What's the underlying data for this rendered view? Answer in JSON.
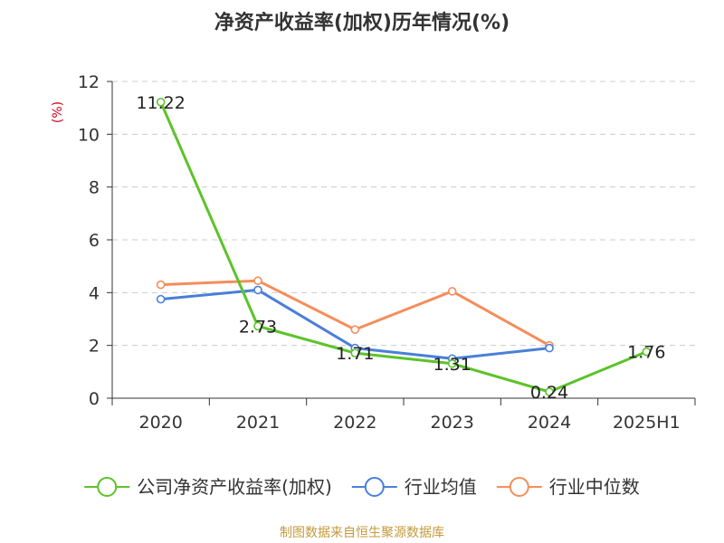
{
  "chart_data": {
    "type": "line",
    "title": "净资产收益率(加权)历年情况(%)",
    "ylabel": "(%)",
    "ylim": [
      0,
      12
    ],
    "yticks": [
      0,
      2,
      4,
      6,
      8,
      10,
      12
    ],
    "grid": true,
    "legend_position": "bottom",
    "categories": [
      "2020",
      "2021",
      "2022",
      "2023",
      "2024",
      "2025H1"
    ],
    "series": [
      {
        "name": "公司净资产收益率(加权)",
        "color": "#5cc32a",
        "values": [
          11.22,
          2.73,
          1.71,
          1.31,
          0.24,
          1.76
        ],
        "data_labels": [
          "11.22",
          "2.73",
          "1.71",
          "1.31",
          "0.24",
          "1.76"
        ]
      },
      {
        "name": "行业均值",
        "color": "#4a7fd9",
        "values": [
          3.75,
          4.1,
          1.9,
          1.5,
          1.9,
          null
        ]
      },
      {
        "name": "行业中位数",
        "color": "#f58d5a",
        "values": [
          4.3,
          4.45,
          2.6,
          4.05,
          2.0,
          null
        ]
      }
    ]
  },
  "ylabel_color": "#d0021b",
  "source": {
    "text": "制图数据来自恒生聚源数据库",
    "color": "#c49a3a"
  }
}
